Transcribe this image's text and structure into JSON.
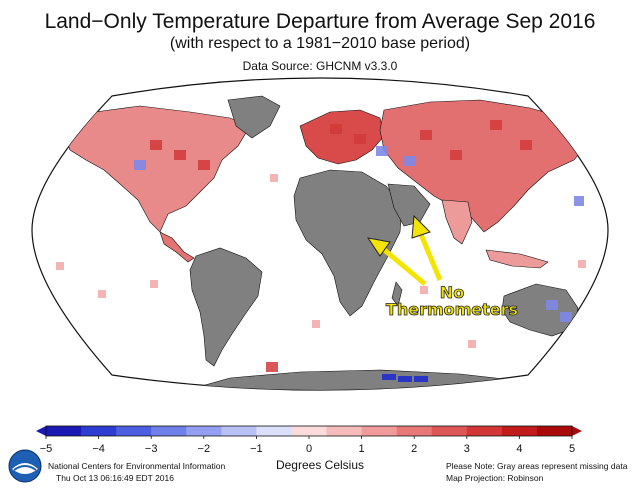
{
  "header": {
    "title": "Land−Only Temperature Departure from Average Sep 2016",
    "subtitle": "(with respect to a 1981−2010 base period)",
    "source": "Data Source: GHCNM v3.3.0"
  },
  "annotation": {
    "line1": "No",
    "line2": "Thermometers",
    "color": "#f5e400"
  },
  "colorbar": {
    "label": "Degrees Celsius",
    "ticks": [
      "−5",
      "−4",
      "−3",
      "−2",
      "−1",
      "0",
      "1",
      "2",
      "3",
      "4",
      "5"
    ],
    "values": [
      -5,
      -4,
      -3,
      -2,
      -1,
      0,
      1,
      2,
      3,
      4,
      5
    ],
    "colors": [
      "#1a1ab2",
      "#2e3ccf",
      "#4d5ee0",
      "#6f80ea",
      "#949ff2",
      "#b9c0f6",
      "#dbdffa",
      "#fbdcdc",
      "#f6bcbc",
      "#f09b9b",
      "#e87878",
      "#de5555",
      "#d23636",
      "#c21b1b",
      "#aa0a0a"
    ]
  },
  "legend_colors": {
    "missing": "#808080",
    "warm_light": "#f4b4b4",
    "warm": "#e57373",
    "warm_strong": "#d23a3a",
    "cool_light": "#c5cbf5",
    "cool": "#7f88e6",
    "cool_strong": "#2a35c8"
  },
  "footer": {
    "org": "National Centers for Environmental Information",
    "timestamp": "Thu Oct 13 06:16:49 EDT 2016",
    "note": "Please Note: Gray areas represent missing data",
    "projection": "Map Projection: Robinson"
  },
  "logo": {
    "icon": "noaa-logo-icon"
  }
}
